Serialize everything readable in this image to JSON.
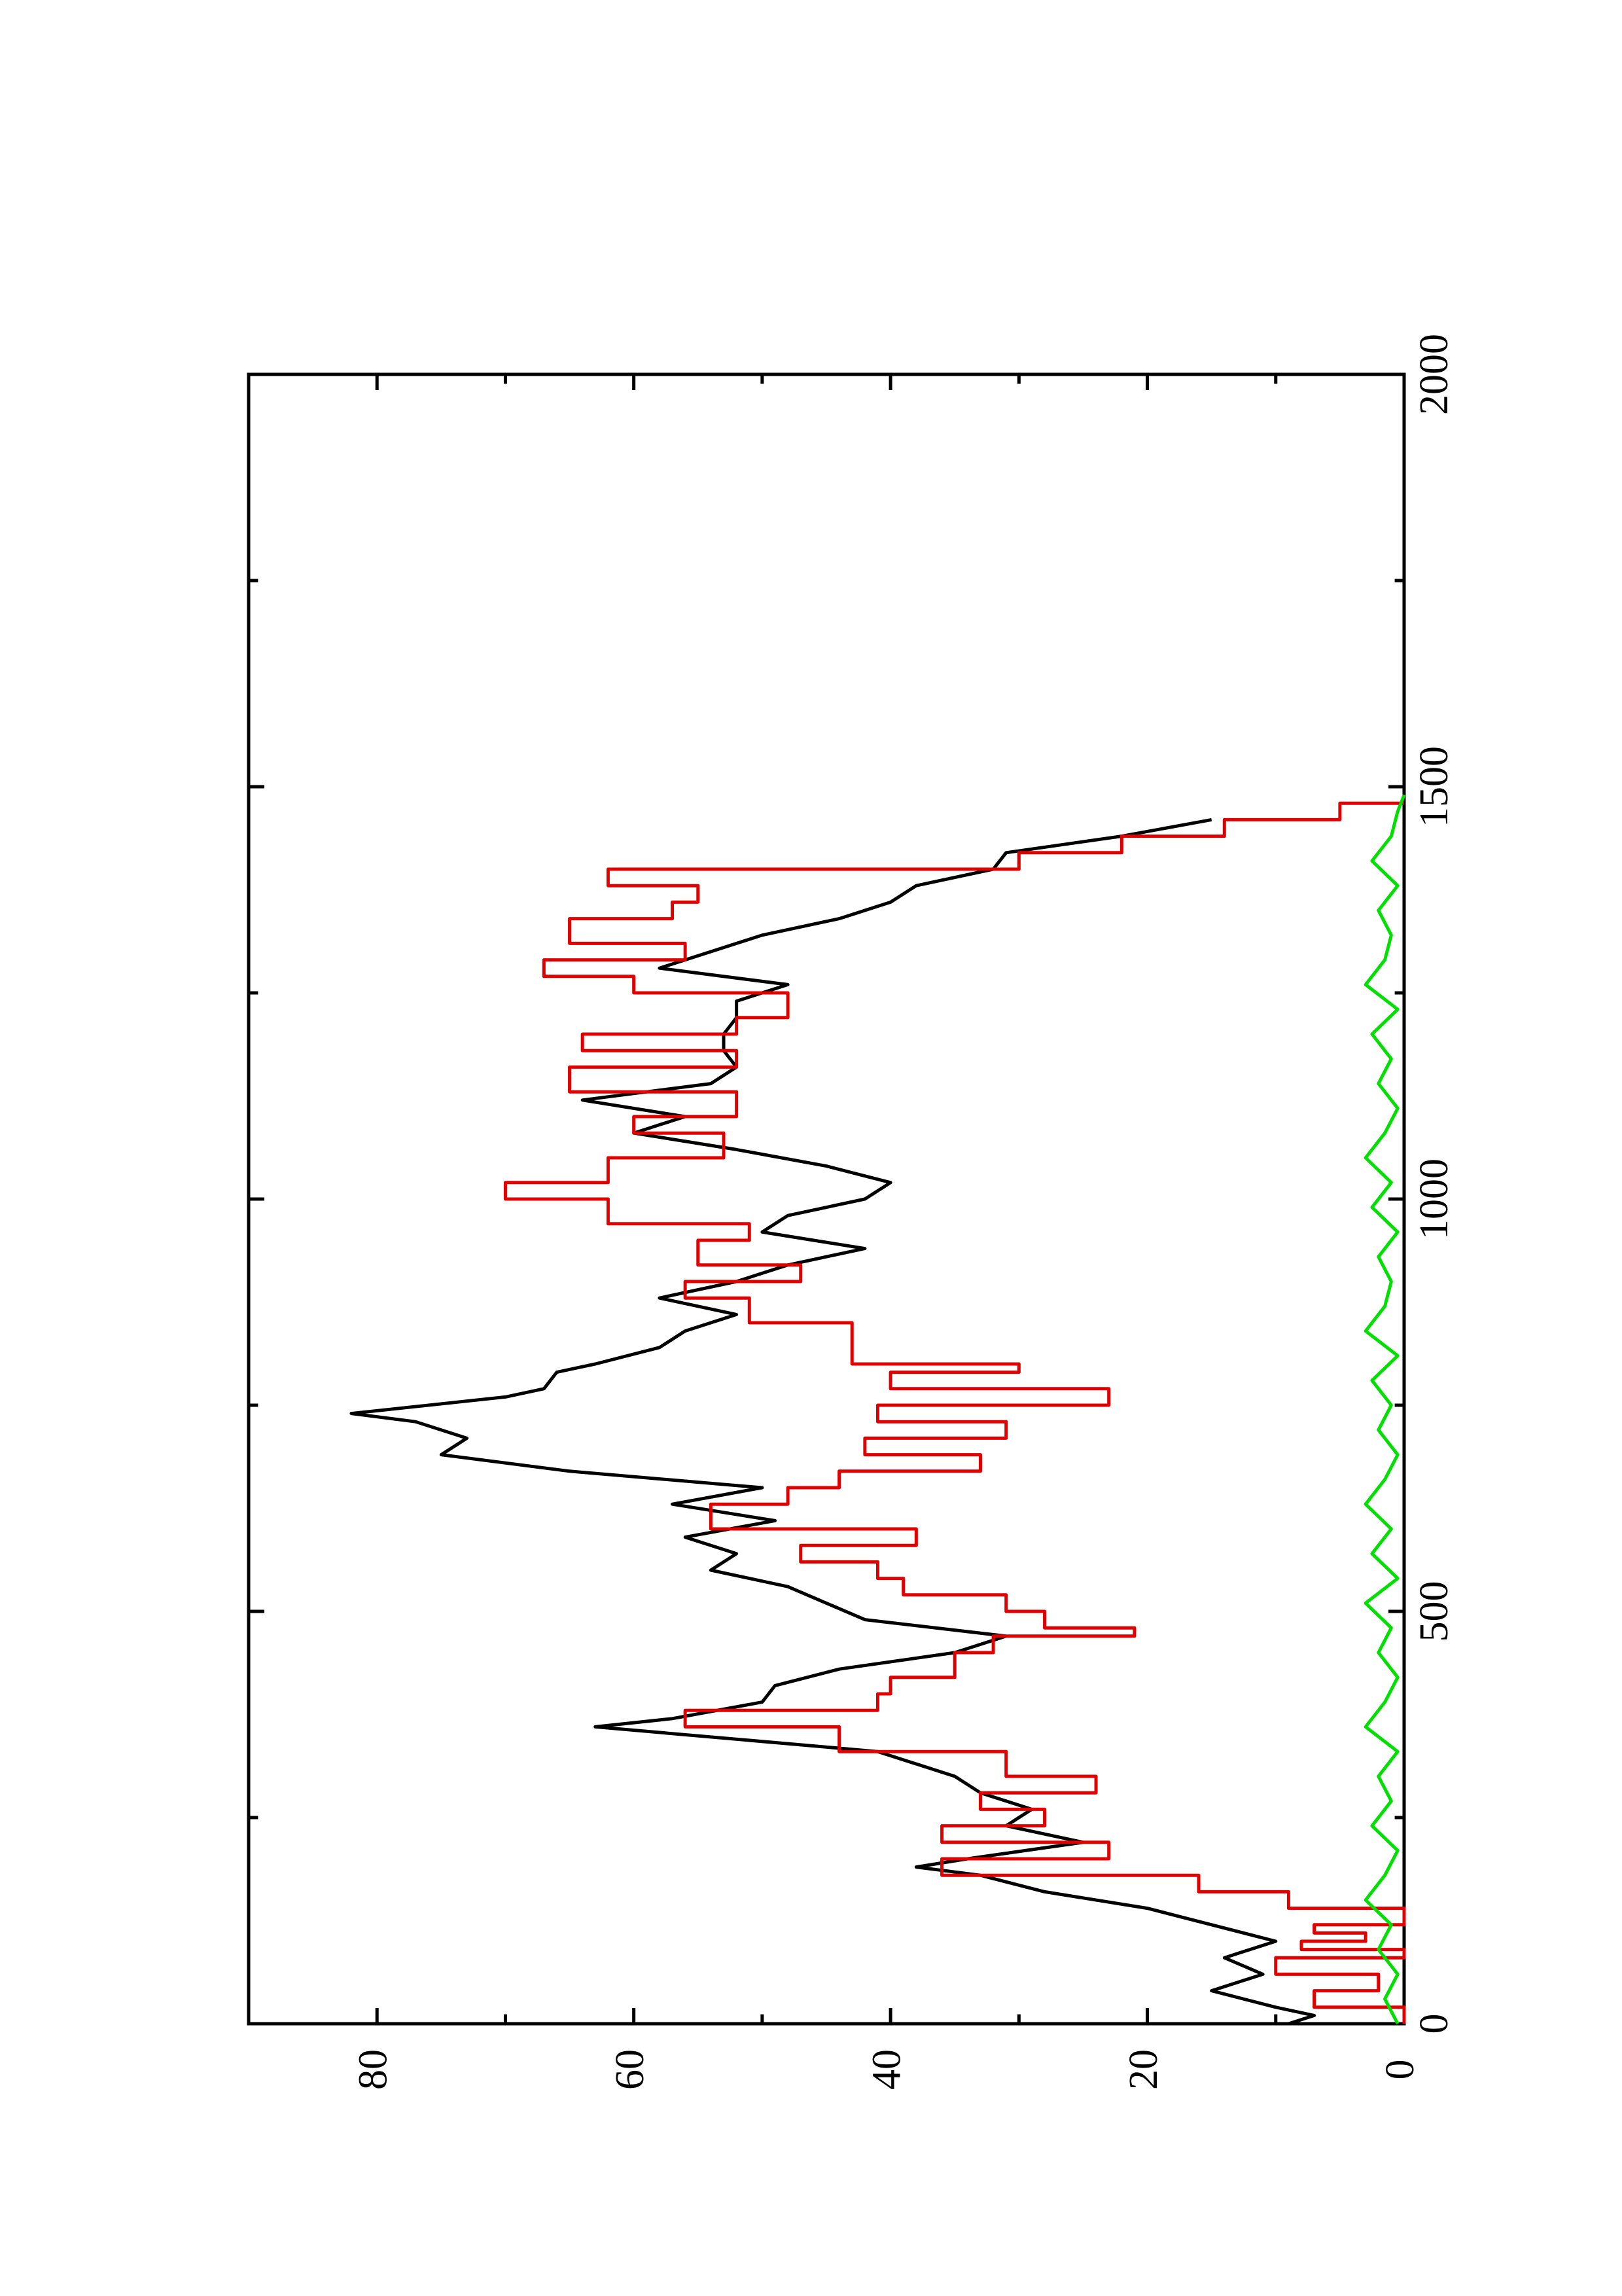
{
  "chart_data": {
    "type": "line",
    "orientation": "rotated-90-clockwise",
    "title": "",
    "xlabel": "",
    "ylabel": "",
    "xlim": [
      0,
      2000
    ],
    "ylim": [
      0,
      90
    ],
    "x_ticks": [
      0,
      500,
      1000,
      1500,
      2000
    ],
    "y_ticks": [
      0,
      20,
      40,
      60,
      80
    ],
    "x_tick_labels": [
      "0",
      "500",
      "1000",
      "1500",
      "2000"
    ],
    "y_tick_labels": [
      "0",
      "20",
      "40",
      "60",
      "80"
    ],
    "grid": false,
    "legend": "none",
    "series": [
      {
        "color": "#000000",
        "style": "line",
        "x": [
          0,
          10,
          20,
          40,
          60,
          80,
          100,
          120,
          140,
          160,
          180,
          190,
          200,
          220,
          240,
          260,
          280,
          300,
          330,
          360,
          370,
          390,
          410,
          430,
          450,
          470,
          490,
          510,
          530,
          550,
          570,
          590,
          610,
          630,
          650,
          670,
          690,
          710,
          730,
          740,
          760,
          770,
          790,
          800,
          820,
          840,
          860,
          880,
          900,
          920,
          940,
          960,
          980,
          1000,
          1020,
          1040,
          1060,
          1080,
          1100,
          1120,
          1140,
          1160,
          1180,
          1200,
          1220,
          1240,
          1260,
          1280,
          1300,
          1320,
          1340,
          1360,
          1380,
          1400,
          1420,
          1440,
          1460
        ],
        "y": [
          9,
          7,
          10,
          15,
          11,
          14,
          10,
          15,
          20,
          28,
          33,
          38,
          34,
          25,
          31,
          29,
          33,
          35,
          41,
          63,
          57,
          50,
          49,
          44,
          35,
          31,
          42,
          45,
          48,
          54,
          52,
          56,
          49,
          57,
          50,
          65,
          75,
          73,
          77,
          82,
          70,
          67,
          66,
          63,
          58,
          56,
          52,
          58,
          52,
          48,
          42,
          50,
          48,
          42,
          40,
          45,
          52,
          60,
          56,
          64,
          54,
          52,
          53,
          53,
          52,
          52,
          48,
          58,
          54,
          50,
          44,
          40,
          38,
          32,
          31,
          22,
          15
        ]
      },
      {
        "color": "#e00000",
        "style": "step",
        "x": [
          0,
          20,
          40,
          60,
          80,
          90,
          100,
          110,
          120,
          140,
          160,
          180,
          200,
          220,
          240,
          260,
          280,
          300,
          330,
          360,
          380,
          400,
          420,
          450,
          470,
          480,
          500,
          520,
          540,
          560,
          580,
          600,
          630,
          650,
          670,
          690,
          710,
          730,
          750,
          770,
          790,
          800,
          850,
          880,
          900,
          920,
          950,
          970,
          1000,
          1020,
          1050,
          1080,
          1100,
          1130,
          1160,
          1180,
          1200,
          1220,
          1250,
          1270,
          1290,
          1310,
          1340,
          1360,
          1380,
          1400,
          1420,
          1440,
          1460,
          1480
        ],
        "y": [
          0,
          7,
          2,
          10,
          0,
          8,
          3,
          7,
          0,
          9,
          16,
          36,
          23,
          36,
          28,
          33,
          24,
          31,
          44,
          56,
          41,
          40,
          35,
          32,
          21,
          28,
          31,
          39,
          41,
          47,
          38,
          54,
          48,
          44,
          33,
          42,
          31,
          41,
          23,
          40,
          30,
          43,
          51,
          56,
          47,
          55,
          51,
          62,
          70,
          62,
          53,
          60,
          52,
          65,
          52,
          64,
          52,
          48,
          60,
          67,
          56,
          65,
          57,
          55,
          62,
          30,
          22,
          14,
          5,
          0
        ]
      },
      {
        "color": "#00e000",
        "style": "noise",
        "x": [
          0,
          30,
          60,
          90,
          120,
          150,
          180,
          210,
          240,
          270,
          300,
          330,
          360,
          390,
          420,
          450,
          480,
          510,
          540,
          570,
          600,
          630,
          660,
          690,
          720,
          750,
          780,
          810,
          840,
          870,
          900,
          930,
          960,
          990,
          1020,
          1050,
          1080,
          1110,
          1140,
          1170,
          1200,
          1230,
          1260,
          1290,
          1320,
          1350,
          1380,
          1410,
          1440,
          1470,
          1490
        ],
        "y": [
          0.5,
          1.5,
          0.5,
          2.0,
          1.0,
          3.0,
          1.5,
          0.5,
          2.5,
          1.0,
          2.0,
          0.5,
          3.0,
          1.5,
          0.5,
          2.0,
          1.0,
          3.0,
          0.5,
          2.5,
          1.0,
          3.0,
          1.5,
          0.5,
          2.0,
          1.0,
          2.5,
          0.5,
          3.0,
          1.5,
          1.0,
          2.0,
          0.5,
          2.5,
          1.0,
          3.0,
          1.5,
          0.5,
          2.0,
          1.0,
          2.5,
          0.5,
          3.0,
          1.5,
          1.0,
          2.0,
          0.5,
          2.5,
          1.0,
          0.5,
          0.0
        ]
      }
    ]
  }
}
